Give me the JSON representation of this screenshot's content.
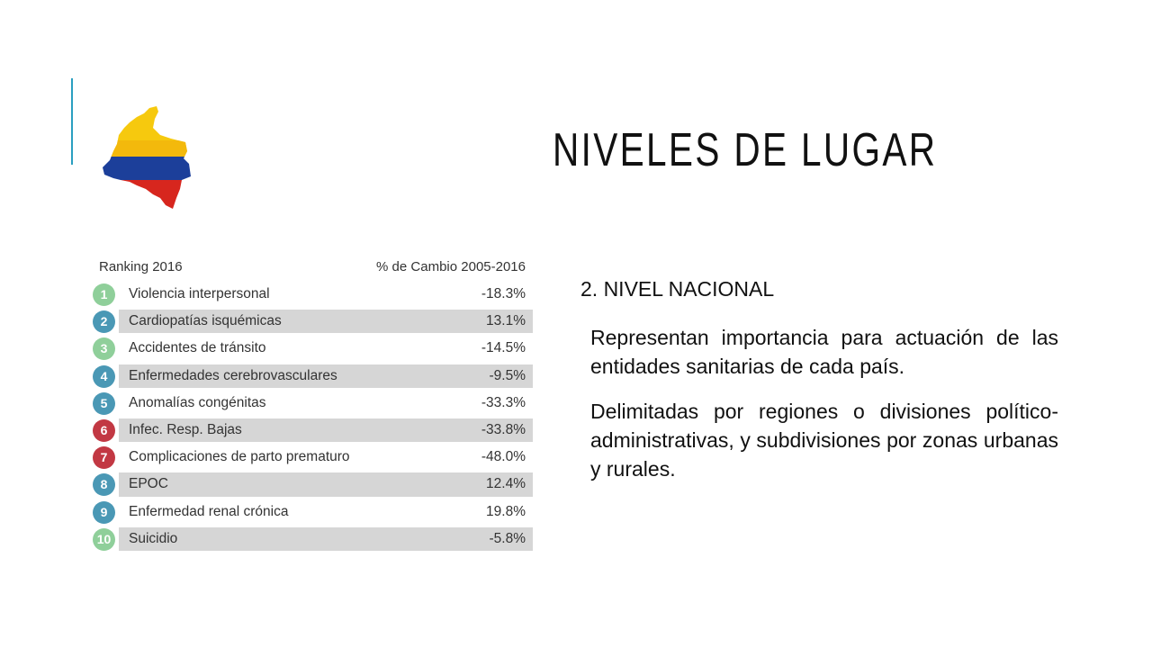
{
  "slide": {
    "title": "NIVELES DE LUGAR",
    "subheading": "2. NIVEL NACIONAL",
    "paragraphs": [
      "Representan importancia para actuación de las entidades sanitarias de cada país.",
      "Delimitadas por regiones  o divisiones político- administrativas, y subdivisiones por zonas urbanas y rurales."
    ]
  },
  "colors": {
    "accent": "#2a9fc0",
    "green": "#8fcf9a",
    "blue": "#4a98b5",
    "red": "#c23843"
  },
  "map_icon": "colombia-flag-map-icon",
  "ranking_table": {
    "header_left": "Ranking 2016",
    "header_right": "% de Cambio 2005-2016",
    "rows": [
      {
        "rank": "1",
        "label": "Violencia interpersonal",
        "value": "-18.3%",
        "color": "green",
        "shaded": false
      },
      {
        "rank": "2",
        "label": "Cardiopatías isquémicas",
        "value": "13.1%",
        "color": "blue",
        "shaded": true
      },
      {
        "rank": "3",
        "label": "Accidentes de tránsito",
        "value": "-14.5%",
        "color": "green",
        "shaded": false
      },
      {
        "rank": "4",
        "label": "Enfermedades cerebrovasculares",
        "value": "-9.5%",
        "color": "blue",
        "shaded": true
      },
      {
        "rank": "5",
        "label": "Anomalías congénitas",
        "value": "-33.3%",
        "color": "blue",
        "shaded": false
      },
      {
        "rank": "6",
        "label": "Infec. Resp. Bajas",
        "value": "-33.8%",
        "color": "red",
        "shaded": true
      },
      {
        "rank": "7",
        "label": "Complicaciones de parto prematuro",
        "value": "-48.0%",
        "color": "red",
        "shaded": false
      },
      {
        "rank": "8",
        "label": "EPOC",
        "value": "12.4%",
        "color": "blue",
        "shaded": true
      },
      {
        "rank": "9",
        "label": "Enfermedad renal crónica",
        "value": "19.8%",
        "color": "blue",
        "shaded": false
      },
      {
        "rank": "10",
        "label": "Suicidio",
        "value": "-5.8%",
        "color": "green",
        "shaded": true
      }
    ]
  }
}
